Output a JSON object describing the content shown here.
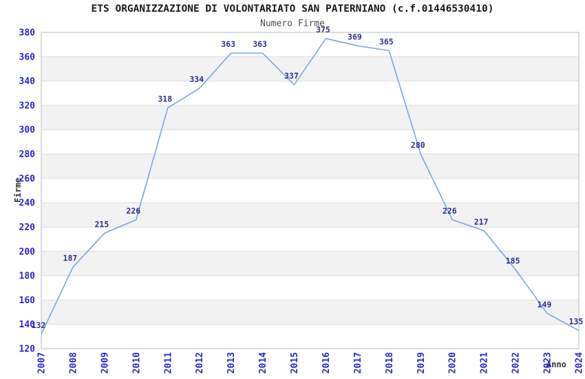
{
  "title": "ETS ORGANIZZAZIONE DI VOLONTARIATO SAN PATERNIANO (c.f.01446530410)",
  "subtitle": "Numero Firme",
  "chart_data": {
    "type": "line",
    "x": [
      "2007",
      "2008",
      "2009",
      "2010",
      "2011",
      "2012",
      "2013",
      "2014",
      "2015",
      "2016",
      "2017",
      "2018",
      "2019",
      "2020",
      "2021",
      "2022",
      "2023",
      "2024"
    ],
    "values": [
      132,
      187,
      215,
      226,
      318,
      334,
      363,
      363,
      337,
      375,
      369,
      365,
      280,
      226,
      217,
      185,
      149,
      135
    ],
    "title": "ETS ORGANIZZAZIONE DI VOLONTARIATO SAN PATERNIANO (c.f.01446530410)",
    "subtitle": "Numero Firme",
    "xlabel": "Anno",
    "ylabel": "Firme",
    "ylim": [
      120,
      380
    ],
    "ytick_step": 20,
    "grid": true,
    "legend": "none",
    "colors": {
      "line": "#79a5e1",
      "point_label": "#2e2e8f",
      "tick_label": "#2727cf",
      "band_fill": "#f2f2f2",
      "gridline": "#dcdcdc",
      "plot_border": "#c4c4c4",
      "title_text": "#1a1a1a",
      "subtitle_text": "#4d4d4d",
      "axis_title_text": "#333333"
    }
  }
}
